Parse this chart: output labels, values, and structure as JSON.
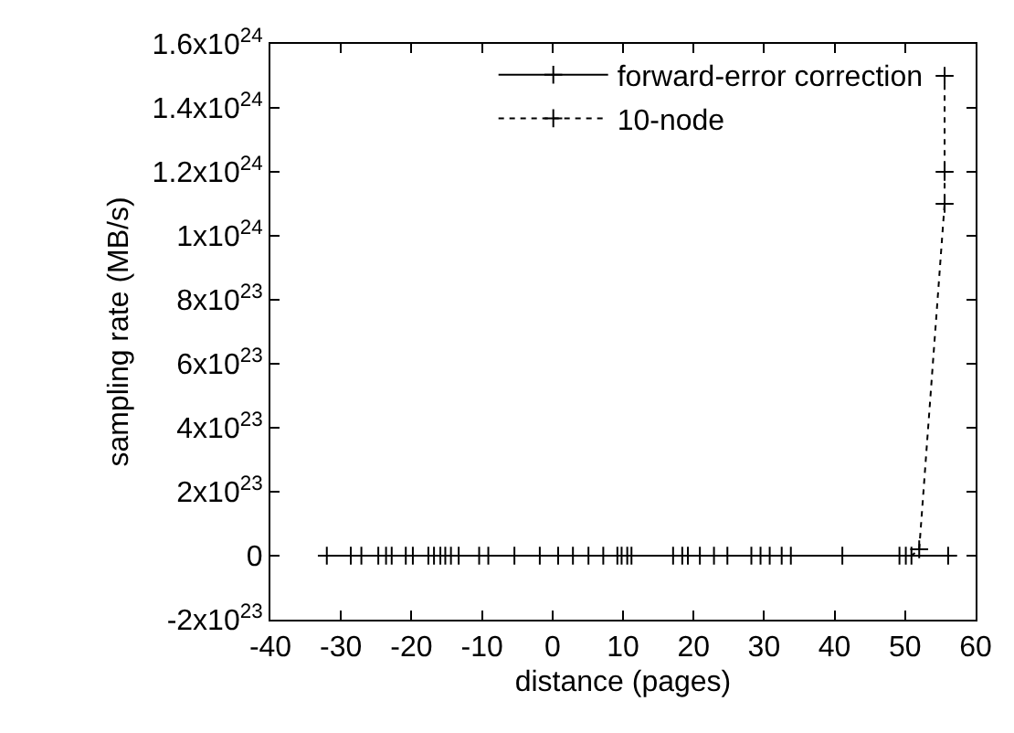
{
  "chart_data": {
    "type": "line",
    "xlabel": "distance (pages)",
    "ylabel": "sampling rate (MB/s)",
    "xlim": [
      -40,
      60
    ],
    "xticks": [
      -40,
      -30,
      -20,
      -10,
      0,
      10,
      20,
      30,
      40,
      50,
      60
    ],
    "ylim": [
      -2e+23,
      1.6e+24
    ],
    "yticks": [
      {
        "value": -2e+23,
        "label": "-2x10$^{23}$"
      },
      {
        "value": 0,
        "label": "0"
      },
      {
        "value": 2e+23,
        "label": "2x10$^{23}$"
      },
      {
        "value": 4e+23,
        "label": "4x10$^{23}$"
      },
      {
        "value": 6e+23,
        "label": "6x10$^{23}$"
      },
      {
        "value": 8e+23,
        "label": "8x10$^{23}$"
      },
      {
        "value": 1e+24,
        "label": "1x10$^{24}$"
      },
      {
        "value": 1.2e+24,
        "label": "1.2x10$^{24}$"
      },
      {
        "value": 1.4e+24,
        "label": "1.4x10$^{24}$"
      },
      {
        "value": 1.6e+24,
        "label": "1.6x10$^{24}$"
      }
    ],
    "legend": "top right",
    "marker": "cross",
    "series": [
      {
        "name": "forward-error correction",
        "color": "#000000",
        "line_style": "solid",
        "x": [
          -32.0,
          -28.6,
          -27.1,
          -24.7,
          -23.6,
          -22.8,
          -20.8,
          -19.8,
          -17.6,
          -16.8,
          -15.9,
          -15.2,
          -14.4,
          -13.3,
          -10.4,
          -9.1,
          -5.4,
          -1.8,
          0.8,
          2.9,
          5.1,
          7.2,
          9.2,
          9.8,
          10.6,
          11.2,
          17.1,
          18.4,
          19.2,
          20.9,
          22.9,
          24.8,
          28.2,
          29.5,
          30.8,
          32.5,
          33.8,
          41.1,
          56.1
        ],
        "values": [
          0,
          0,
          0,
          0,
          0,
          0,
          0,
          0,
          0,
          0,
          0,
          0,
          0,
          0,
          0,
          0,
          0,
          0,
          0,
          0,
          0,
          0,
          0,
          0,
          0,
          0,
          0,
          0,
          0,
          0,
          0,
          0,
          0,
          0,
          0,
          0,
          0,
          0,
          0
        ]
      },
      {
        "name": "10-node",
        "color": "#000000",
        "line_style": "dotted",
        "x": [
          49.2,
          50.1,
          50.9,
          52.0,
          55.6,
          55.6,
          55.6
        ],
        "values": [
          0,
          0,
          0,
          2e+22,
          1.1e+24,
          1.2e+24,
          1.5e+24
        ]
      }
    ]
  }
}
